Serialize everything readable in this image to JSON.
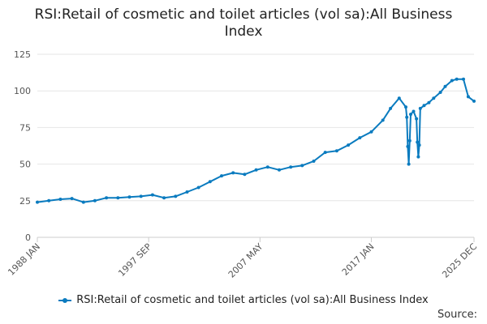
{
  "title": "RSI:Retail of cosmetic and toilet articles (vol sa):All Business Index",
  "source_label": "Source:",
  "colors": {
    "series": "#0a7bbf",
    "grid": "#e6e6e6",
    "axis": "#cccccc",
    "tick_text": "#555555"
  },
  "chart_data": {
    "type": "line",
    "title": "RSI:Retail of cosmetic and toilet articles (vol sa):All Business Index",
    "xlabel": "",
    "ylabel": "",
    "ylim": [
      0,
      125
    ],
    "y_ticks": [
      0,
      25,
      50,
      75,
      100,
      125
    ],
    "x_range": [
      "1988-01",
      "2025-12"
    ],
    "x_ticks": [
      {
        "date": "1988-01",
        "label": "1988 JAN"
      },
      {
        "date": "1997-09",
        "label": "1997 SEP"
      },
      {
        "date": "2007-05",
        "label": "2007 MAY"
      },
      {
        "date": "2017-01",
        "label": "2017 JAN"
      },
      {
        "date": "2025-12",
        "label": "2025 DEC"
      }
    ],
    "grid": true,
    "legend_position": "bottom",
    "series": [
      {
        "name": "RSI:Retail of cosmetic and toilet articles (vol sa):All Business Index",
        "points": [
          [
            "1988-01",
            24
          ],
          [
            "1989-01",
            25
          ],
          [
            "1990-01",
            26
          ],
          [
            "1991-01",
            26.5
          ],
          [
            "1992-01",
            24
          ],
          [
            "1993-01",
            25
          ],
          [
            "1994-01",
            27
          ],
          [
            "1995-01",
            27
          ],
          [
            "1996-01",
            27.5
          ],
          [
            "1997-01",
            28
          ],
          [
            "1998-01",
            29
          ],
          [
            "1999-01",
            27
          ],
          [
            "2000-01",
            28
          ],
          [
            "2001-01",
            31
          ],
          [
            "2002-01",
            34
          ],
          [
            "2003-01",
            38
          ],
          [
            "2004-01",
            42
          ],
          [
            "2005-01",
            44
          ],
          [
            "2006-01",
            43
          ],
          [
            "2007-01",
            46
          ],
          [
            "2008-01",
            48
          ],
          [
            "2009-01",
            46
          ],
          [
            "2010-01",
            48
          ],
          [
            "2011-01",
            49
          ],
          [
            "2012-01",
            52
          ],
          [
            "2013-01",
            58
          ],
          [
            "2014-01",
            59
          ],
          [
            "2015-01",
            63
          ],
          [
            "2016-01",
            68
          ],
          [
            "2017-01",
            72
          ],
          [
            "2018-01",
            80
          ],
          [
            "2018-09",
            88
          ],
          [
            "2019-06",
            95
          ],
          [
            "2020-01",
            89
          ],
          [
            "2020-02",
            82
          ],
          [
            "2020-03",
            62
          ],
          [
            "2020-04",
            50
          ],
          [
            "2020-05",
            66
          ],
          [
            "2020-06",
            84
          ],
          [
            "2020-09",
            86
          ],
          [
            "2020-12",
            81
          ],
          [
            "2021-01",
            65
          ],
          [
            "2021-02",
            55
          ],
          [
            "2021-03",
            63
          ],
          [
            "2021-04",
            88
          ],
          [
            "2021-08",
            90
          ],
          [
            "2022-01",
            92
          ],
          [
            "2022-06",
            95
          ],
          [
            "2023-01",
            99
          ],
          [
            "2023-06",
            103
          ],
          [
            "2024-01",
            107
          ],
          [
            "2024-06",
            108
          ],
          [
            "2025-01",
            108
          ],
          [
            "2025-06",
            96
          ],
          [
            "2025-12",
            93
          ]
        ]
      }
    ]
  }
}
